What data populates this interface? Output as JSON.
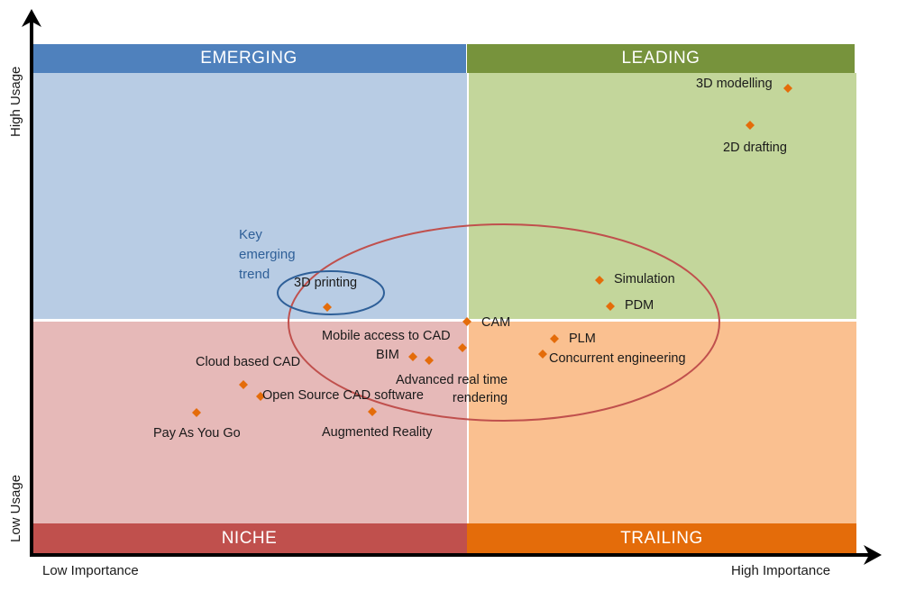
{
  "quadrants": {
    "emerging": {
      "label": "EMERGING",
      "band_color": "#4f81bd",
      "fill_color": "#b8cce4"
    },
    "leading": {
      "label": "LEADING",
      "band_color": "#77933c",
      "fill_color": "#c3d69b"
    },
    "niche": {
      "label": "NICHE",
      "band_color": "#c0504d",
      "fill_color": "#e6b9b8"
    },
    "trailing": {
      "label": "TRAILING",
      "band_color": "#e46c0a",
      "fill_color": "#fac090"
    }
  },
  "axes": {
    "x_low": "Low Importance",
    "x_high": "High Importance",
    "y_high": "High Usage",
    "y_low": "Low Usage"
  },
  "callout": {
    "text": "Key\nemerging\ntrend",
    "color": "#2e5f98"
  },
  "marker_color": "#e46c0a",
  "highlight_ellipse_color": "#c0504d",
  "callout_ellipse_color": "#2e5f98",
  "items": [
    {
      "id": "3d-modelling",
      "label": "3D modelling"
    },
    {
      "id": "2d-drafting",
      "label": "2D drafting"
    },
    {
      "id": "simulation",
      "label": "Simulation"
    },
    {
      "id": "pdm",
      "label": "PDM"
    },
    {
      "id": "3d-printing",
      "label": "3D printing"
    },
    {
      "id": "cam",
      "label": "CAM"
    },
    {
      "id": "mobile-access",
      "label": "Mobile access to CAD"
    },
    {
      "id": "plm",
      "label": "PLM"
    },
    {
      "id": "bim",
      "label": "BIM"
    },
    {
      "id": "concurrent-engineering",
      "label": "Concurrent engineering"
    },
    {
      "id": "cloud-cad",
      "label": "Cloud based CAD"
    },
    {
      "id": "advanced-rendering",
      "label": "Advanced real time\nrendering"
    },
    {
      "id": "open-source-cad",
      "label": "Open Source CAD software"
    },
    {
      "id": "pay-as-you-go",
      "label": "Pay As You Go"
    },
    {
      "id": "augmented-reality",
      "label": "Augmented Reality"
    }
  ]
}
